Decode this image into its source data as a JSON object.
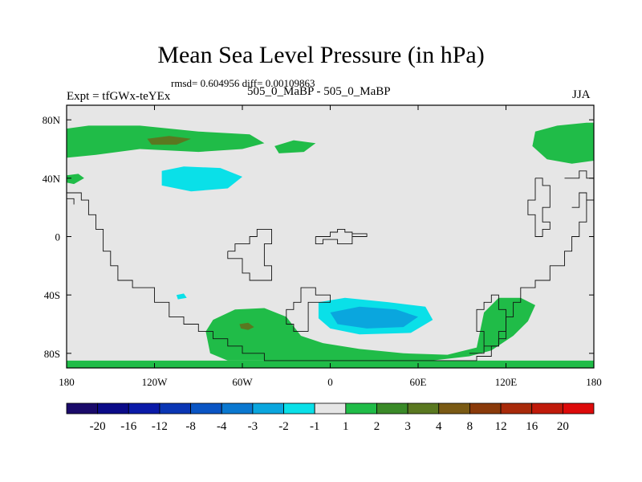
{
  "chart_data": {
    "type": "heatmap",
    "title": "Mean Sea Level Pressure (in hPa)",
    "stats": "rmsd= 0.604956 diff= 0.00109863",
    "experiment": "Expt = tfGWx-teYEx",
    "case_label": "505_0_MaBP - 505_0_MaBP",
    "season": "JJA",
    "x_ticks": [
      {
        "value": -180,
        "label": "180"
      },
      {
        "value": -120,
        "label": "120W"
      },
      {
        "value": -60,
        "label": "60W"
      },
      {
        "value": 0,
        "label": "0"
      },
      {
        "value": 60,
        "label": "60E"
      },
      {
        "value": 120,
        "label": "120E"
      },
      {
        "value": 180,
        "label": "180"
      }
    ],
    "y_ticks": [
      {
        "value": 80,
        "label": "80N"
      },
      {
        "value": 40,
        "label": "40N"
      },
      {
        "value": 0,
        "label": "0"
      },
      {
        "value": -40,
        "label": "40S"
      },
      {
        "value": -80,
        "label": "80S"
      }
    ],
    "xlim": [
      -180,
      180
    ],
    "ylim": [
      -90,
      90
    ],
    "colorbar": {
      "levels": [
        "-20",
        "-16",
        "-12",
        "-8",
        "-4",
        "-3",
        "-2",
        "-1",
        "1",
        "2",
        "3",
        "4",
        "8",
        "12",
        "16",
        "20"
      ],
      "colors": [
        "#1a0a6a",
        "#0b0b88",
        "#0a1aa8",
        "#0a36b4",
        "#0a55c4",
        "#0a78d0",
        "#0aa6de",
        "#0ae0e8",
        "#e6e6e6",
        "#20bc48",
        "#3a8a28",
        "#5a7820",
        "#7a5a14",
        "#8a3a0a",
        "#a82a0a",
        "#c01a0a",
        "#dd0a0a"
      ]
    },
    "background_level_color": "#e6e6e6",
    "regions": [
      {
        "name": "arctic-high-west",
        "level": "1 to 2",
        "color": "#20bc48",
        "points": [
          [
            -180,
            74
          ],
          [
            -165,
            76
          ],
          [
            -130,
            76
          ],
          [
            -90,
            72
          ],
          [
            -55,
            70
          ],
          [
            -45,
            64
          ],
          [
            -60,
            60
          ],
          [
            -90,
            58
          ],
          [
            -130,
            60
          ],
          [
            -160,
            56
          ],
          [
            -180,
            54
          ]
        ]
      },
      {
        "name": "arctic-high-center",
        "level": "3 to 4",
        "color": "#5a7820",
        "points": [
          [
            -125,
            67
          ],
          [
            -110,
            69
          ],
          [
            -95,
            67
          ],
          [
            -105,
            63
          ],
          [
            -122,
            63
          ]
        ]
      },
      {
        "name": "north-atlantic-patch",
        "level": "1 to 2",
        "color": "#20bc48",
        "points": [
          [
            -38,
            62
          ],
          [
            -25,
            66
          ],
          [
            -10,
            64
          ],
          [
            -18,
            58
          ],
          [
            -35,
            57
          ]
        ]
      },
      {
        "name": "arctic-high-east",
        "level": "1 to 2",
        "color": "#20bc48",
        "points": [
          [
            140,
            72
          ],
          [
            155,
            76
          ],
          [
            175,
            78
          ],
          [
            180,
            78
          ],
          [
            180,
            52
          ],
          [
            165,
            50
          ],
          [
            148,
            53
          ],
          [
            138,
            62
          ]
        ]
      },
      {
        "name": "north-pacific-low",
        "level": "-2 to -1",
        "color": "#0ae0e8",
        "points": [
          [
            -115,
            45
          ],
          [
            -100,
            48
          ],
          [
            -75,
            47
          ],
          [
            -60,
            41
          ],
          [
            -70,
            33
          ],
          [
            -95,
            31
          ],
          [
            -115,
            35
          ]
        ]
      },
      {
        "name": "west-edge-patch",
        "level": "1 to 2",
        "color": "#20bc48",
        "points": [
          [
            -180,
            42
          ],
          [
            -172,
            43
          ],
          [
            -168,
            40
          ],
          [
            -175,
            36
          ],
          [
            -180,
            37
          ]
        ]
      },
      {
        "name": "southern-high-west",
        "level": "1 to 2",
        "color": "#20bc48",
        "points": [
          [
            -80,
            -57
          ],
          [
            -65,
            -50
          ],
          [
            -45,
            -49
          ],
          [
            -30,
            -55
          ],
          [
            -20,
            -68
          ],
          [
            -5,
            -73
          ],
          [
            20,
            -77
          ],
          [
            50,
            -80
          ],
          [
            80,
            -81
          ],
          [
            100,
            -76
          ],
          [
            105,
            -52
          ],
          [
            115,
            -42
          ],
          [
            130,
            -42
          ],
          [
            140,
            -47
          ],
          [
            135,
            -58
          ],
          [
            125,
            -68
          ],
          [
            110,
            -78
          ],
          [
            95,
            -82
          ],
          [
            60,
            -86
          ],
          [
            20,
            -86
          ],
          [
            -40,
            -85
          ],
          [
            -70,
            -85
          ],
          [
            -82,
            -80
          ],
          [
            -85,
            -65
          ]
        ]
      },
      {
        "name": "southern-high-patch",
        "level": "3 to 4",
        "color": "#5a7820",
        "points": [
          [
            -62,
            -60
          ],
          [
            -56,
            -59
          ],
          [
            -52,
            -62
          ],
          [
            -56,
            -64
          ],
          [
            -61,
            -63
          ]
        ]
      },
      {
        "name": "south-atlantic-low",
        "level": "-2 to -1",
        "color": "#0ae0e8",
        "points": [
          [
            -8,
            -45
          ],
          [
            10,
            -42
          ],
          [
            40,
            -45
          ],
          [
            65,
            -48
          ],
          [
            70,
            -57
          ],
          [
            55,
            -66
          ],
          [
            20,
            -67
          ],
          [
            0,
            -63
          ],
          [
            -8,
            -56
          ]
        ]
      },
      {
        "name": "south-atlantic-low-core",
        "level": "-3 to -2",
        "color": "#0aa6de",
        "points": [
          [
            0,
            -52
          ],
          [
            20,
            -48
          ],
          [
            45,
            -50
          ],
          [
            60,
            -55
          ],
          [
            50,
            -62
          ],
          [
            25,
            -63
          ],
          [
            5,
            -60
          ]
        ]
      },
      {
        "name": "southern-ocean-band",
        "level": "1 to 2",
        "color": "#20bc48",
        "points": [
          [
            -180,
            -85
          ],
          [
            180,
            -85
          ],
          [
            180,
            -90
          ],
          [
            -180,
            -90
          ]
        ]
      },
      {
        "name": "small-blue-patch",
        "level": "-2 to -1",
        "color": "#0ae0e8",
        "points": [
          [
            -105,
            -40
          ],
          [
            -100,
            -39
          ],
          [
            -98,
            -42
          ],
          [
            -104,
            -43
          ]
        ]
      }
    ],
    "coastlines": [
      [
        [
          -180,
          30
        ],
        [
          -170,
          30
        ],
        [
          -170,
          25
        ],
        [
          -165,
          25
        ],
        [
          -165,
          15
        ],
        [
          -160,
          15
        ],
        [
          -160,
          5
        ],
        [
          -155,
          5
        ],
        [
          -155,
          -10
        ],
        [
          -150,
          -10
        ],
        [
          -150,
          -20
        ],
        [
          -145,
          -20
        ],
        [
          -145,
          -30
        ],
        [
          -135,
          -30
        ],
        [
          -135,
          -35
        ],
        [
          -120,
          -35
        ],
        [
          -120,
          -45
        ],
        [
          -110,
          -45
        ],
        [
          -110,
          -55
        ],
        [
          -100,
          -55
        ],
        [
          -100,
          -60
        ],
        [
          -90,
          -60
        ],
        [
          -90,
          -65
        ],
        [
          -80,
          -65
        ],
        [
          -80,
          -70
        ],
        [
          -70,
          -70
        ],
        [
          -70,
          -75
        ],
        [
          -60,
          -75
        ],
        [
          -60,
          -80
        ],
        [
          -45,
          -80
        ],
        [
          -45,
          -85
        ],
        [
          100,
          -85
        ],
        [
          100,
          -82
        ],
        [
          110,
          -82
        ],
        [
          110,
          -75
        ],
        [
          115,
          -75
        ],
        [
          115,
          -70
        ],
        [
          120,
          -70
        ],
        [
          120,
          -55
        ],
        [
          125,
          -55
        ],
        [
          125,
          -45
        ],
        [
          130,
          -45
        ],
        [
          130,
          -35
        ],
        [
          140,
          -35
        ],
        [
          140,
          -30
        ],
        [
          150,
          -30
        ],
        [
          150,
          -20
        ],
        [
          160,
          -20
        ],
        [
          160,
          -10
        ],
        [
          165,
          -10
        ],
        [
          165,
          0
        ],
        [
          170,
          0
        ],
        [
          170,
          10
        ],
        [
          175,
          10
        ],
        [
          175,
          25
        ],
        [
          180,
          25
        ]
      ],
      [
        [
          -180,
          26
        ],
        [
          -175,
          26
        ],
        [
          -175,
          22
        ]
      ],
      [
        [
          -70,
          -10
        ],
        [
          -65,
          -10
        ],
        [
          -65,
          -5
        ],
        [
          -55,
          -5
        ],
        [
          -55,
          0
        ],
        [
          -50,
          0
        ],
        [
          -50,
          5
        ],
        [
          -40,
          5
        ],
        [
          -40,
          -5
        ],
        [
          -45,
          -5
        ],
        [
          -45,
          -20
        ],
        [
          -40,
          -20
        ],
        [
          -40,
          -30
        ],
        [
          -55,
          -30
        ],
        [
          -55,
          -25
        ],
        [
          -60,
          -25
        ],
        [
          -60,
          -15
        ],
        [
          -70,
          -15
        ],
        [
          -70,
          -10
        ]
      ],
      [
        [
          -10,
          0
        ],
        [
          0,
          0
        ],
        [
          0,
          3
        ],
        [
          5,
          3
        ],
        [
          5,
          5
        ],
        [
          10,
          5
        ],
        [
          10,
          3
        ],
        [
          15,
          3
        ],
        [
          15,
          0
        ],
        [
          25,
          0
        ],
        [
          25,
          2
        ],
        [
          15,
          2
        ],
        [
          15,
          -5
        ],
        [
          5,
          -5
        ],
        [
          5,
          -2
        ],
        [
          -5,
          -2
        ],
        [
          -5,
          -5
        ],
        [
          -10,
          -5
        ],
        [
          -10,
          0
        ]
      ],
      [
        [
          -15,
          -65
        ],
        [
          -15,
          -45
        ],
        [
          0,
          -45
        ],
        [
          0,
          -40
        ],
        [
          -10,
          -40
        ],
        [
          -10,
          -35
        ],
        [
          -20,
          -35
        ],
        [
          -20,
          -45
        ],
        [
          -25,
          -45
        ],
        [
          -25,
          -50
        ],
        [
          -30,
          -50
        ],
        [
          -30,
          -60
        ],
        [
          -25,
          -60
        ],
        [
          -25,
          -65
        ],
        [
          -15,
          -65
        ]
      ],
      [
        [
          95,
          -80
        ],
        [
          105,
          -80
        ],
        [
          105,
          -65
        ],
        [
          100,
          -65
        ],
        [
          100,
          -50
        ],
        [
          105,
          -50
        ],
        [
          105,
          -45
        ],
        [
          110,
          -45
        ],
        [
          110,
          -40
        ],
        [
          115,
          -40
        ],
        [
          115,
          -50
        ],
        [
          120,
          -50
        ],
        [
          120,
          -65
        ],
        [
          115,
          -65
        ],
        [
          115,
          -75
        ],
        [
          105,
          -75
        ]
      ],
      [
        [
          140,
          40
        ],
        [
          145,
          40
        ],
        [
          145,
          35
        ],
        [
          150,
          35
        ],
        [
          150,
          20
        ],
        [
          145,
          20
        ],
        [
          145,
          10
        ],
        [
          150,
          10
        ],
        [
          150,
          5
        ],
        [
          145,
          5
        ],
        [
          145,
          0
        ],
        [
          140,
          0
        ],
        [
          140,
          15
        ],
        [
          135,
          15
        ],
        [
          135,
          25
        ],
        [
          140,
          25
        ],
        [
          140,
          40
        ]
      ],
      [
        [
          160,
          40
        ],
        [
          170,
          40
        ],
        [
          170,
          45
        ],
        [
          175,
          45
        ],
        [
          175,
          40
        ],
        [
          180,
          40
        ]
      ],
      [
        [
          165,
          20
        ],
        [
          170,
          20
        ],
        [
          170,
          30
        ],
        [
          175,
          30
        ],
        [
          175,
          25
        ],
        [
          180,
          25
        ]
      ]
    ]
  }
}
